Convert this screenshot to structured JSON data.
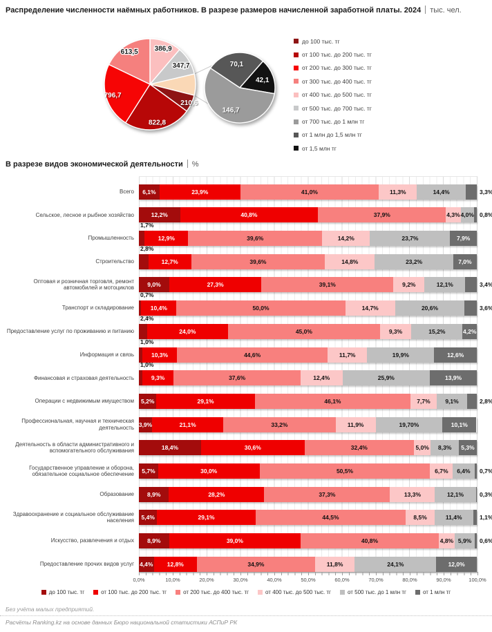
{
  "header": {
    "title": "Распределение численности наёмных работников. В разрезе размеров начисленной заработной платы. 2024",
    "unit": "тыс. чел."
  },
  "section2": {
    "title": "В разрезе видов экономической деятельности",
    "unit": "%"
  },
  "footer": {
    "note": "Без учёта малых предприятий.",
    "source": "Расчёты Ranking.kz на основе данных Бюро национальной статистики АСПиР РК"
  },
  "chart_data": [
    {
      "type": "pie",
      "variant": "pie-of-pie",
      "units": "тыс. чел.",
      "legend_position": "right",
      "legend": [
        {
          "label": "до 100 тыс. тг",
          "color": "#8E1414"
        },
        {
          "label": "от 100 тыс. до 200 тыс. тг",
          "color": "#B70707"
        },
        {
          "label": "от 200 тыс. до 300 тыс. тг",
          "color": "#F60505"
        },
        {
          "label": "от 300 тыс. до 400 тыс. тг",
          "color": "#F5807E"
        },
        {
          "label": "от 400 тыс. до 500 тыс. тг",
          "color": "#FBBFBF"
        },
        {
          "label": "от 500 тыс. до 700 тыс. тг",
          "color": "#C8C9CA"
        },
        {
          "label": "от 700 тыс. до 1 млн тг",
          "color": "#9B9B9B"
        },
        {
          "label": "от 1 млн до 1,5 млн тг",
          "color": "#575757"
        },
        {
          "label": "от 1,5 млн тг",
          "color": "#121212"
        }
      ],
      "main_pie": {
        "start_angle": 0,
        "slices": [
          {
            "name": "от 400 тыс. до 500 тыс. тг",
            "label": "386,9",
            "value": 386.9,
            "color": "#FBBFBF",
            "label_color": "dark",
            "label_r": 0.84
          },
          {
            "name": "от 500 тыс. до 700 тыс. тг",
            "label": "347,7",
            "value": 347.7,
            "color": "#C8C9CA",
            "label_color": "dark",
            "label_r": 0.8
          },
          {
            "name": "прочие (от 700 тыс. тг, разбивка во второй диаграмме)",
            "label": "",
            "value": 258.9,
            "color": "#FAD8B6",
            "label_color": "dark",
            "label_r": 0.8,
            "breakout": true
          },
          {
            "name": "до 100 тыс. тг",
            "label": "210,6",
            "value": 210.6,
            "color": "#8E1414",
            "label_color": "light",
            "label_r": 0.95
          },
          {
            "name": "от 100 тыс. до 200 тыс. тг",
            "label": "822,8",
            "value": 822.8,
            "color": "#B70707",
            "label_color": "light",
            "label_r": 0.85
          },
          {
            "name": "от 200 тыс. до 300 тыс. тг",
            "label": "796,7",
            "value": 796.7,
            "color": "#F60505",
            "label_color": "light",
            "label_r": 0.85
          },
          {
            "name": "от 300 тыс. до 400 тыс. тг",
            "label": "613,5",
            "value": 613.5,
            "color": "#F5807E",
            "label_color": "dark",
            "label_r": 0.85
          }
        ]
      },
      "secondary_pie": {
        "start_angle": -56.25,
        "slices": [
          {
            "name": "от 1 млн до 1,5 млн тг",
            "label": "70,1",
            "value": 70.1,
            "color": "#575757",
            "label_color": "light",
            "label_r": 0.68
          },
          {
            "name": "от 1,5 млн тг",
            "label": "42,1",
            "value": 42.1,
            "color": "#121212",
            "label_color": "light",
            "label_r": 0.68
          },
          {
            "name": "от 700 тыс. до 1 млн тг",
            "label": "146,7",
            "value": 146.7,
            "color": "#9B9B9B",
            "label_color": "light",
            "label_r": 0.68
          }
        ]
      }
    },
    {
      "type": "bar",
      "orientation": "horizontal-stacked",
      "units": "%",
      "xlim": [
        0,
        100
      ],
      "x_ticks": [
        "0,0%",
        "10,0%",
        "20,0%",
        "30,0%",
        "40,0%",
        "50,0%",
        "60,0%",
        "70,0%",
        "80,0%",
        "90,0%",
        "100,0%"
      ],
      "grid": "minor 2% / major 10%",
      "legend_position": "bottom",
      "series": [
        {
          "name": "до 100 тыс. тг",
          "color": "#A30C0C"
        },
        {
          "name": "от 100 тыс. до 200 тыс. тг",
          "color": "#EF0000"
        },
        {
          "name": "от 200 тыс. до 400 тыс. тг",
          "color": "#F8807E"
        },
        {
          "name": "от 400 тыс. до 500 тыс. тг",
          "color": "#FCC7C7"
        },
        {
          "name": "от 500 тыс. до 1 млн тг",
          "color": "#BFBFBF"
        },
        {
          "name": "от 1 млн тг",
          "color": "#6D6D6D"
        }
      ],
      "rows": [
        {
          "category": "Всего",
          "values": [
            6.1,
            23.9,
            41.0,
            11.3,
            14.4,
            3.3
          ],
          "labels": [
            "6,1%",
            "23,9%",
            "41,0%",
            "11,3%",
            "14,4%",
            "3,3%"
          ]
        },
        {
          "category": "Сельское, лесное и рыбное хозяйство",
          "values": [
            12.2,
            40.8,
            37.9,
            4.3,
            4.0,
            0.8
          ],
          "labels": [
            "12,2%",
            "40,8%",
            "37,9%",
            "4,3%",
            "4,0%",
            "0,8%"
          ]
        },
        {
          "category": "Промышленность",
          "values": [
            1.7,
            12.9,
            39.6,
            14.2,
            23.7,
            7.9
          ],
          "labels": [
            "1,7%",
            "12,9%",
            "39,6%",
            "14,2%",
            "23,7%",
            "7,9%"
          ]
        },
        {
          "category": "Строительство",
          "values": [
            2.8,
            12.7,
            39.6,
            14.8,
            23.2,
            7.0
          ],
          "labels": [
            "2,8%",
            "12,7%",
            "39,6%",
            "14,8%",
            "23,2%",
            "7,0%"
          ]
        },
        {
          "category": "Оптовая и розничная торговля, ремонт автомобилей и мотоциклов",
          "values": [
            9.0,
            27.3,
            39.1,
            9.2,
            12.1,
            3.4
          ],
          "labels": [
            "9,0%",
            "27,3%",
            "39,1%",
            "9,2%",
            "12,1%",
            "3,4%"
          ]
        },
        {
          "category": "Транспорт и складирование",
          "values": [
            0.7,
            10.4,
            50.0,
            14.7,
            20.6,
            3.6
          ],
          "labels": [
            "0,7%",
            "10,4%",
            "50,0%",
            "14,7%",
            "20,6%",
            "3,6%"
          ]
        },
        {
          "category": "Предоставление услуг по проживанию и питанию",
          "values": [
            2.4,
            24.0,
            45.0,
            9.3,
            15.2,
            4.2
          ],
          "labels": [
            "2,4%",
            "24,0%",
            "45,0%",
            "9,3%",
            "15,2%",
            "4,2%"
          ]
        },
        {
          "category": "Информация и связь",
          "values": [
            1.0,
            10.3,
            44.6,
            11.7,
            19.9,
            12.6
          ],
          "labels": [
            "1,0%",
            "10,3%",
            "44,6%",
            "11,7%",
            "19,9%",
            "12,6%"
          ]
        },
        {
          "category": "Финансовая и страховая деятельность",
          "values": [
            1.0,
            9.3,
            37.6,
            12.4,
            25.9,
            13.9
          ],
          "labels": [
            "1,0%",
            "9,3%",
            "37,6%",
            "12,4%",
            "25,9%",
            "13,9%"
          ]
        },
        {
          "category": "Операции с недвижимым имуществом",
          "values": [
            5.2,
            29.1,
            46.1,
            7.7,
            9.1,
            2.8
          ],
          "labels": [
            "5,2%",
            "29,1%",
            "46,1%",
            "7,7%",
            "9,1%",
            "2,8%"
          ]
        },
        {
          "category": "Профессиональная, научная и техническая деятельность",
          "values": [
            3.9,
            21.1,
            33.2,
            11.9,
            19.7,
            10.1
          ],
          "labels": [
            "3,9%",
            "21,1%",
            "33,2%",
            "11,9%",
            "19,70%",
            "10,1%"
          ]
        },
        {
          "category": "Деятельность в области административного и вспомогательного обслуживания",
          "values": [
            18.4,
            30.6,
            32.4,
            5.0,
            8.3,
            5.3
          ],
          "labels": [
            "18,4%",
            "30,6%",
            "32,4%",
            "5,0%",
            "8,3%",
            "5,3%"
          ]
        },
        {
          "category": "Государственное управление и оборона, обязательное социальное обеспечение",
          "values": [
            5.7,
            30.0,
            50.5,
            6.7,
            6.4,
            0.7
          ],
          "labels": [
            "5,7%",
            "30,0%",
            "50,5%",
            "6,7%",
            "6,4%",
            "0,7%"
          ]
        },
        {
          "category": "Образование",
          "values": [
            8.9,
            28.2,
            37.3,
            13.3,
            12.1,
            0.3
          ],
          "labels": [
            "8,9%",
            "28,2%",
            "37,3%",
            "13,3%",
            "12,1%",
            "0,3%"
          ]
        },
        {
          "category": "Здравоохранение и социальное обслуживание населения",
          "values": [
            5.4,
            29.1,
            44.5,
            8.5,
            11.4,
            1.1
          ],
          "labels": [
            "5,4%",
            "29,1%",
            "44,5%",
            "8,5%",
            "11,4%",
            "1,1%"
          ]
        },
        {
          "category": "Искусство, развлечения и отдых",
          "values": [
            8.9,
            39.0,
            40.8,
            4.8,
            5.9,
            0.6
          ],
          "labels": [
            "8,9%",
            "39,0%",
            "40,8%",
            "4,8%",
            "5,9%",
            "0,6%"
          ]
        },
        {
          "category": "Предоставление прочих видов услуг",
          "values": [
            4.4,
            12.8,
            34.9,
            11.8,
            24.1,
            12.0
          ],
          "labels": [
            "4,4%",
            "12,8%",
            "34,9%",
            "11,8%",
            "24,1%",
            "12,0%"
          ]
        }
      ]
    }
  ]
}
